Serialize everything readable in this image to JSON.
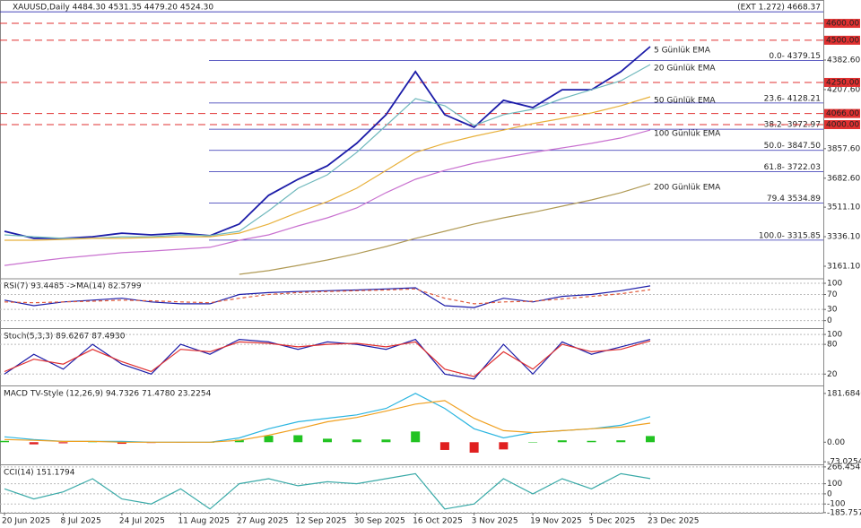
{
  "chart_data": [
    {
      "type": "line",
      "title": "XAUUSD,Daily  4484.30 4531.35 4479.20 4524.30",
      "ylim": [
        3092,
        4738.4
      ],
      "yticks": [
        {
          "value": 4382.6,
          "label": "4382.60"
        },
        {
          "value": 4207.6,
          "label": "4207.60"
        },
        {
          "value": 3857.6,
          "label": "3857.60"
        },
        {
          "value": 3682.6,
          "label": "3682.60"
        },
        {
          "value": 3511.1,
          "label": "3511.10"
        },
        {
          "value": 3336.1,
          "label": "3336.10"
        },
        {
          "value": 3161.1,
          "label": "3161.10"
        }
      ],
      "levels": [
        {
          "value": 4600,
          "label": "4600.00"
        },
        {
          "value": 4500,
          "label": "4500.00"
        },
        {
          "value": 4250,
          "label": "4250.00"
        },
        {
          "value": 4066,
          "label": "4066.00"
        },
        {
          "value": 4000,
          "label": "4000.00"
        }
      ],
      "level_color": "#e03030",
      "fib": [
        {
          "value": 4668.37,
          "label": "(EXT 1.272)  4668.37"
        },
        {
          "value": 4379.15,
          "label": "0.0- 4379.15"
        },
        {
          "value": 4128.21,
          "label": "23.6- 4128.21"
        },
        {
          "value": 3972.97,
          "label": "38.2- 3972.97"
        },
        {
          "value": 3847.5,
          "label": "50.0- 3847.50"
        },
        {
          "value": 3722.03,
          "label": "61.8- 3722.03"
        },
        {
          "value": 3534.89,
          "label": "79.4 3534.89"
        },
        {
          "value": 3315.85,
          "label": "100.0- 3315.85"
        }
      ],
      "fib_color": "#2b2bb0",
      "series": [
        {
          "name": "5 Günlük EMA",
          "color": "#1c1ca8",
          "values": [
            3368,
            3326,
            3326,
            3336,
            3357,
            3347,
            3357,
            3342,
            3411,
            3581,
            3676,
            3756,
            3889,
            4059,
            4314,
            4059,
            3984,
            4144,
            4101,
            4207,
            4207,
            4314,
            4462
          ]
        },
        {
          "name": "20 Günlük EMA",
          "color": "#6fb8bc",
          "values": [
            3347,
            3336,
            3326,
            3326,
            3336,
            3336,
            3347,
            3342,
            3368,
            3490,
            3623,
            3703,
            3835,
            3995,
            4154,
            4112,
            3995,
            4059,
            4091,
            4154,
            4207,
            4260,
            4356
          ]
        },
        {
          "name": "50 Günlük EMA",
          "color": "#e8b13c",
          "values": [
            3315,
            3315,
            3320,
            3326,
            3326,
            3331,
            3336,
            3336,
            3357,
            3411,
            3480,
            3544,
            3623,
            3729,
            3835,
            3889,
            3931,
            3968,
            4006,
            4037,
            4069,
            4112,
            4165
          ]
        },
        {
          "name": "100 Günlük EMA",
          "color": "#c972d0",
          "values": [
            3166,
            3188,
            3209,
            3225,
            3241,
            3251,
            3262,
            3273,
            3315,
            3347,
            3400,
            3448,
            3506,
            3597,
            3676,
            3729,
            3772,
            3804,
            3835,
            3862,
            3889,
            3921,
            3968
          ]
        },
        {
          "name": "200 Günlük EMA",
          "color": "#b09a55",
          "values": [
            null,
            null,
            null,
            null,
            null,
            null,
            null,
            null,
            3113,
            3135,
            3166,
            3198,
            3235,
            3278,
            3326,
            3368,
            3411,
            3448,
            3480,
            3517,
            3554,
            3597,
            3650
          ]
        }
      ]
    },
    {
      "type": "line",
      "title": "RSI(7) 93.4485  ->MA(14) 82.5799",
      "ylim": [
        -20,
        112
      ],
      "yticks": [
        0,
        30,
        70,
        100
      ],
      "grid": true,
      "series": [
        {
          "color": "#1c1ca8",
          "values": [
            55,
            40,
            50,
            55,
            60,
            50,
            45,
            45,
            70,
            75,
            78,
            80,
            82,
            85,
            88,
            40,
            35,
            60,
            50,
            65,
            70,
            80,
            93
          ]
        },
        {
          "color": "#e05a3a",
          "style": "dashed",
          "values": [
            50,
            48,
            50,
            52,
            55,
            53,
            50,
            48,
            60,
            70,
            75,
            78,
            80,
            82,
            85,
            60,
            45,
            50,
            52,
            58,
            65,
            72,
            83
          ]
        }
      ]
    },
    {
      "type": "line",
      "title": "Stoch(5,3,3) 89.6267 87.4930",
      "ylim": [
        -3,
        111
      ],
      "yticks": [
        20,
        80,
        100
      ],
      "grid": true,
      "series": [
        {
          "color": "#1c1ca8",
          "values": [
            20,
            60,
            30,
            80,
            40,
            20,
            80,
            60,
            90,
            85,
            70,
            85,
            80,
            70,
            90,
            20,
            10,
            80,
            20,
            85,
            60,
            75,
            90
          ]
        },
        {
          "color": "#e03030",
          "values": [
            25,
            50,
            40,
            70,
            45,
            25,
            70,
            65,
            85,
            82,
            75,
            80,
            82,
            75,
            85,
            30,
            15,
            65,
            30,
            80,
            65,
            70,
            87
          ]
        }
      ]
    },
    {
      "type": "combo",
      "title": "MACD TV-Style (12,26,9) 94.7326 71.4780 23.2254",
      "ylim": [
        -82.6,
        208.1
      ],
      "yticks": [
        181.6846,
        {
          "value": 0,
          "label": "0.00"
        },
        -73.0254
      ],
      "series": [
        {
          "type": "bar",
          "color": "#22c322",
          "negative_color": "#e02020",
          "values": [
            5,
            -8,
            -4,
            2,
            -6,
            -3,
            -2,
            0,
            9,
            24,
            26,
            13,
            10,
            10,
            40,
            -29,
            -39,
            -27,
            0,
            7,
            5,
            7,
            23
          ]
        },
        {
          "color": "#2bb5e0",
          "values": [
            20,
            10,
            3,
            3,
            3,
            0,
            0,
            0,
            16,
            50,
            76,
            89,
            102,
            126,
            182,
            126,
            50,
            16,
            36,
            43,
            50,
            63,
            95
          ]
        },
        {
          "color": "#f0a020",
          "values": [
            10,
            7,
            3,
            3,
            0,
            0,
            0,
            0,
            7,
            26,
            50,
            76,
            92,
            116,
            142,
            155,
            89,
            43,
            36,
            43,
            50,
            56,
            71
          ]
        }
      ]
    },
    {
      "type": "line",
      "title": "CCI(14) 151.1794",
      "ylim": [
        -187,
        283
      ],
      "yticks": [
        266.454,
        100,
        0,
        -100,
        -185.757
      ],
      "grid": true,
      "categories": [
        "20 Jun 2025",
        null,
        "8 Jul 2025",
        null,
        "24 Jul 2025",
        null,
        "11 Aug 2025",
        null,
        "27 Aug 2025",
        null,
        "12 Sep 2025",
        null,
        "30 Sep 2025",
        null,
        "16 Oct 2025",
        null,
        "3 Nov 2025",
        null,
        "19 Nov 2025",
        null,
        "5 Dec 2025",
        null,
        "23 Dec 2025"
      ],
      "series": [
        {
          "color": "#3aaaa8",
          "values": [
            50,
            -50,
            20,
            150,
            -50,
            -100,
            50,
            -150,
            100,
            150,
            80,
            120,
            100,
            150,
            200,
            -150,
            -100,
            150,
            0,
            150,
            50,
            200,
            151
          ]
        }
      ]
    }
  ]
}
